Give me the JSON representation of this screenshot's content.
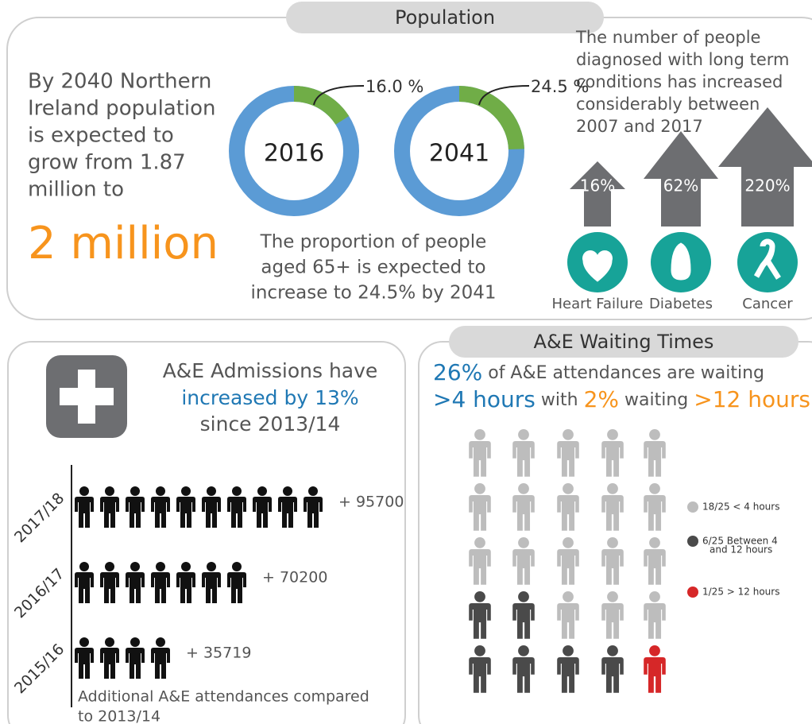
{
  "population": {
    "title": "Population",
    "intro": [
      "By 2040 Northern",
      "Ireland population",
      "is expected to",
      "grow from 1.87",
      "million to"
    ],
    "highlight": "2 million",
    "donuts": [
      {
        "year": "2016",
        "share": {
          "value": 16.0,
          "label": "16.0 %"
        }
      },
      {
        "year": "2041",
        "share": {
          "value": 24.5,
          "label": "24.5 %"
        }
      }
    ],
    "caption": [
      "The proportion of people",
      "aged 65+ is expected to",
      "increase to 24.5% by 2041"
    ],
    "conditions_text": [
      "The number of people",
      "diagnosed with long term",
      "conditions has increased",
      "considerably between",
      "2007 and 2017"
    ],
    "conditions": [
      {
        "name": "Heart Failure",
        "increase": "16%"
      },
      {
        "name": "Diabetes",
        "increase": "62%"
      },
      {
        "name": "Cancer",
        "increase": "220%"
      }
    ]
  },
  "admissions": {
    "headline": [
      "A&E Admissions  have",
      "increased by 13%",
      "since 2013/14"
    ],
    "rows": [
      {
        "year": "2017/18",
        "icons": 10,
        "label": "+ 95700"
      },
      {
        "year": "2016/17",
        "icons": 7,
        "label": "+ 70200"
      },
      {
        "year": "2015/16",
        "icons": 4,
        "label": "+ 35719"
      }
    ],
    "footnote": [
      "Additional A&E attendances compared",
      "to 2013/14"
    ]
  },
  "waiting": {
    "title": "A&E Waiting Times",
    "headline": [
      [
        {
          "text": "26%",
          "color": "#1f78b4"
        },
        {
          "text": " of A&E attendances are waiting",
          "color": "#555555"
        }
      ],
      [
        {
          "text": ">4 hours",
          "color": "#1f78b4"
        },
        {
          "text": " with ",
          "color": "#555555"
        },
        {
          "text": "2%",
          "color": "#f7941d"
        },
        {
          "text": " waiting ",
          "color": "#555555"
        },
        {
          "text": ">12 hours",
          "color": "#f7941d"
        }
      ]
    ],
    "legend": [
      {
        "label": [
          "18/25 < 4 hours"
        ],
        "count": 18,
        "color": "#bdbdbd"
      },
      {
        "label": [
          "6/25 Between 4",
          "and 12 hours"
        ],
        "count": 6,
        "color": "#4a4a4a"
      },
      {
        "label": [
          "1/25 > 12 hours"
        ],
        "count": 1,
        "color": "#d62728"
      }
    ]
  }
}
